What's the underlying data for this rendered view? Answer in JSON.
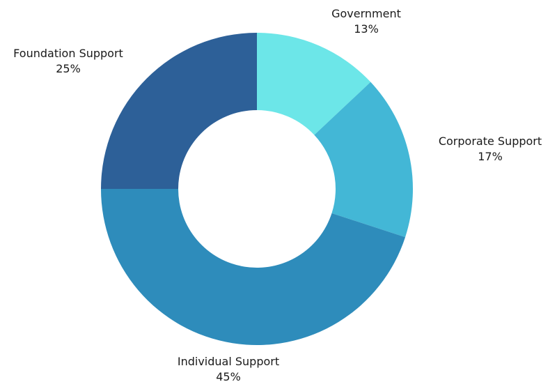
{
  "chart_data": {
    "type": "pie",
    "title": "",
    "donut": true,
    "slices": [
      {
        "label": "Government",
        "value": 13,
        "display": "13%",
        "color": "#6ce6e8"
      },
      {
        "label": "Corporate Support",
        "value": 17,
        "display": "17%",
        "color": "#43b7d6"
      },
      {
        "label": "Individual Support",
        "value": 45,
        "display": "45%",
        "color": "#2e8cbb"
      },
      {
        "label": "Foundation Support",
        "value": 25,
        "display": "25%",
        "color": "#2d6098"
      }
    ],
    "legend": "none"
  }
}
